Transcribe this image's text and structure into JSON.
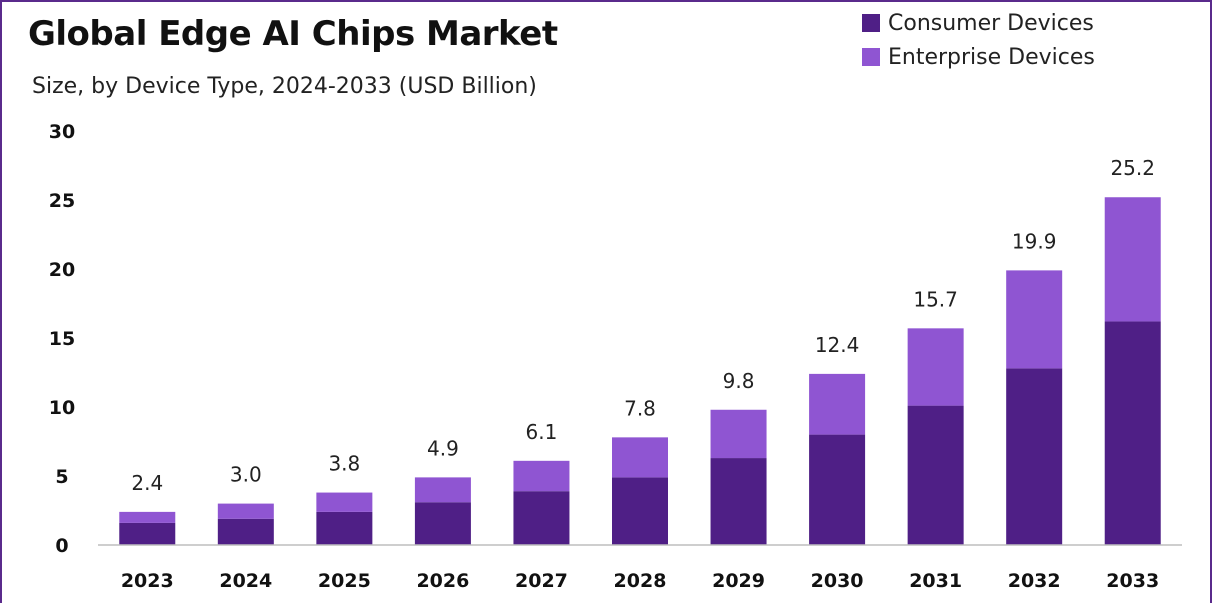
{
  "chart_data": {
    "type": "bar",
    "stacked": true,
    "title": "Global Edge AI Chips Market",
    "subtitle": "Size, by Device Type, 2024-2033 (USD Billion)",
    "categories": [
      "2023",
      "2024",
      "2025",
      "2026",
      "2027",
      "2028",
      "2029",
      "2030",
      "2031",
      "2032",
      "2033"
    ],
    "totals": [
      "2.4",
      "3.0",
      "3.8",
      "4.9",
      "6.1",
      "7.8",
      "9.8",
      "12.4",
      "15.7",
      "19.9",
      "25.2"
    ],
    "series": [
      {
        "name": "Consumer Devices",
        "color": "#4f1f86",
        "values": [
          1.6,
          1.9,
          2.4,
          3.1,
          3.9,
          4.9,
          6.3,
          8.0,
          10.1,
          12.8,
          16.2
        ]
      },
      {
        "name": "Enterprise Devices",
        "color": "#8f55d2",
        "values": [
          0.8,
          1.1,
          1.4,
          1.8,
          2.2,
          2.9,
          3.5,
          4.4,
          5.6,
          7.1,
          9.0
        ]
      }
    ],
    "yticks": [
      0,
      5,
      10,
      15,
      20,
      25,
      30
    ],
    "ylim": [
      0,
      30
    ],
    "xlabel": "",
    "ylabel": "",
    "grid": false,
    "legend_position": "top-right"
  }
}
